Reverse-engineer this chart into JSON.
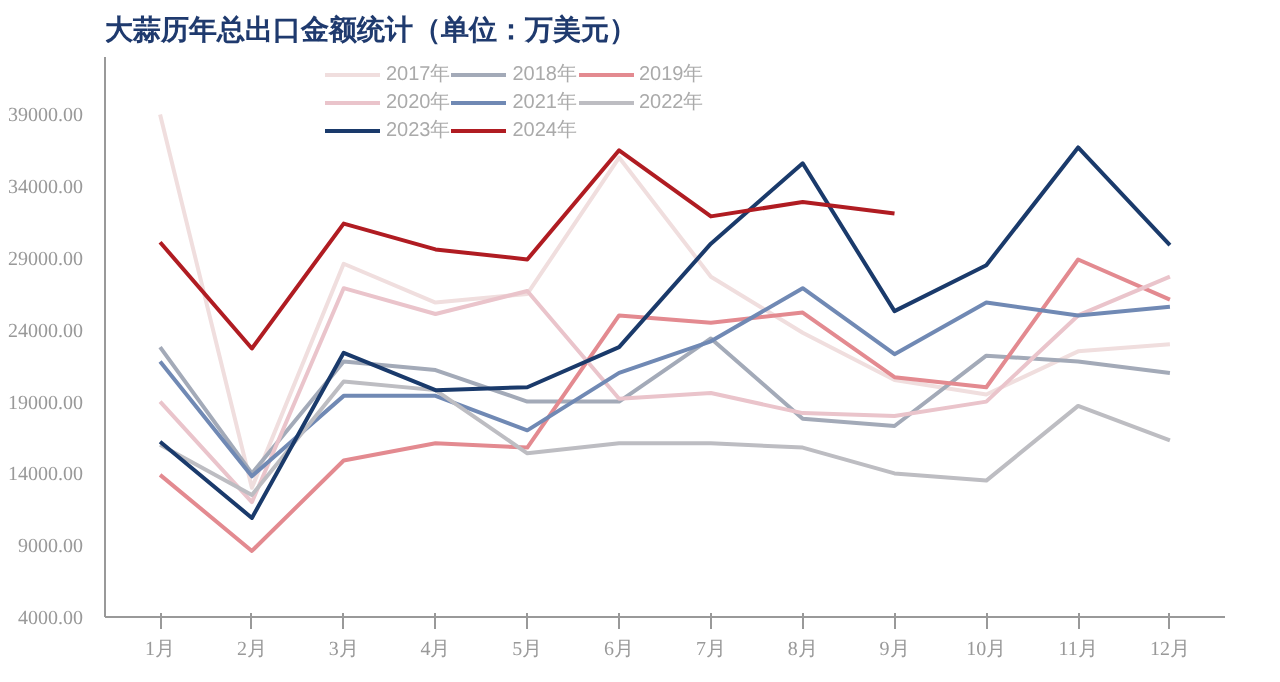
{
  "chart_data": {
    "type": "line",
    "title": "大蒜历年总出口金额统计（单位：万美元）",
    "categories": [
      "1月",
      "2月",
      "3月",
      "4月",
      "5月",
      "6月",
      "7月",
      "8月",
      "9月",
      "10月",
      "11月",
      "12月"
    ],
    "series": [
      {
        "name": "2017年",
        "color": "#f0dede",
        "values": [
          39000,
          13000,
          28600,
          25900,
          26500,
          36000,
          27700,
          23800,
          20500,
          19500,
          22500,
          23000
        ]
      },
      {
        "name": "2018年",
        "color": "#a3aab8",
        "values": [
          22800,
          14000,
          21800,
          21200,
          19000,
          19000,
          23400,
          17800,
          17300,
          22200,
          21800,
          21000
        ]
      },
      {
        "name": "2019年",
        "color": "#e38a90",
        "values": [
          13900,
          8600,
          14900,
          16100,
          15800,
          25000,
          24500,
          25200,
          20700,
          20000,
          28900,
          26100
        ]
      },
      {
        "name": "2020年",
        "color": "#eac4cb",
        "values": [
          19000,
          12000,
          26900,
          25100,
          26700,
          19200,
          19600,
          18200,
          18000,
          19000,
          25000,
          27700
        ]
      },
      {
        "name": "2021年",
        "color": "#7089b4",
        "values": [
          21800,
          13800,
          19400,
          19400,
          17000,
          21000,
          23200,
          26900,
          22300,
          25900,
          25000,
          25600
        ]
      },
      {
        "name": "2022年",
        "color": "#bdbdc2",
        "values": [
          16000,
          12500,
          20400,
          19800,
          15400,
          16100,
          16100,
          15800,
          14000,
          13500,
          18700,
          16300
        ]
      },
      {
        "name": "2023年",
        "color": "#1a3a6b",
        "values": [
          16200,
          10900,
          22400,
          19800,
          20000,
          22800,
          30000,
          35600,
          25300,
          28500,
          36700,
          29900
        ]
      },
      {
        "name": "2024年",
        "color": "#b01c22",
        "values": [
          30100,
          22700,
          31400,
          29600,
          28900,
          36500,
          31900,
          32900,
          32100,
          null,
          null,
          null
        ]
      }
    ],
    "ylim": [
      4000,
      43000
    ],
    "yticks": [
      {
        "value": 4000,
        "label": "4000.00"
      },
      {
        "value": 9000,
        "label": "9000.00"
      },
      {
        "value": 14000,
        "label": "14000.00"
      },
      {
        "value": 19000,
        "label": "19000.00"
      },
      {
        "value": 24000,
        "label": "24000.00"
      },
      {
        "value": 29000,
        "label": "29000.00"
      },
      {
        "value": 34000,
        "label": "34000.00"
      },
      {
        "value": 39000,
        "label": "39000.00"
      }
    ],
    "grid": false,
    "legend": "top"
  }
}
